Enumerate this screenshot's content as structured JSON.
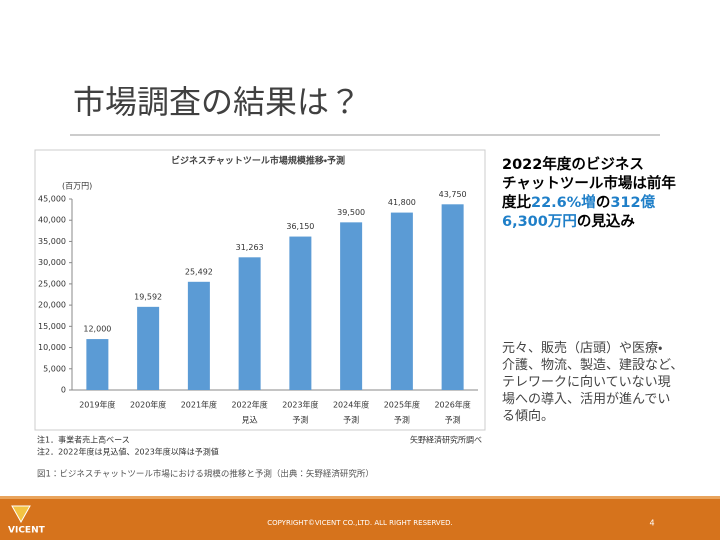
{
  "slide_title": "市場調査の結果は？",
  "chart_data": {
    "type": "bar",
    "title": "ビジネスチャットツール市場規模推移・予測",
    "y_unit_label": "(百万円)",
    "categories": [
      "2019年度",
      "2020年度",
      "2021年度",
      "2022年度",
      "2023年度",
      "2024年度",
      "2025年度",
      "2026年度"
    ],
    "category_sublabels": [
      null,
      null,
      null,
      "見込",
      "予測",
      "予測",
      "予測",
      "予測"
    ],
    "values": [
      12000,
      19592,
      25492,
      31263,
      36150,
      39500,
      41800,
      43750
    ],
    "value_labels": [
      "12,000",
      "19,592",
      "25,492",
      "31,263",
      "36,150",
      "39,500",
      "41,800",
      "43,750"
    ],
    "color": "#5b9bd5",
    "ylim": [
      0,
      45000
    ],
    "yticks": [
      0,
      {
        "value": 5000,
        "label": "5,000"
      },
      {
        "value": 10000,
        "label": "10,000"
      },
      {
        "value": 15000,
        "label": "15,000"
      },
      {
        "value": 20000,
        "label": "20,000"
      },
      {
        "value": 25000,
        "label": "25,000"
      },
      {
        "value": 30000,
        "label": "30,000"
      },
      {
        "value": 35000,
        "label": "35,000"
      },
      {
        "value": 40000,
        "label": "40,000"
      },
      {
        "value": 45000,
        "label": "45,000"
      }
    ],
    "grid": false,
    "notes": [
      "注1．事業者売上高ベース",
      "注2．2022年度は見込値、2023年度以降は予測値"
    ],
    "source": "矢野経済研究所調べ"
  },
  "chart_caption": "図1：ビジネスチャットツール市場における規模の推移と予測（出典：矢野経済研究所）",
  "headline": {
    "lines": [
      [
        {
          "text": "2022年度のビジネス",
          "color": "#000000"
        }
      ],
      [
        {
          "text": "チャットツール市場は前年",
          "color": "#000000"
        }
      ],
      [
        {
          "text": "度比",
          "color": "#000000"
        },
        {
          "text": "22.6%増",
          "color": "#1f7fc8"
        },
        {
          "text": "の",
          "color": "#000000"
        },
        {
          "text": "312億",
          "color": "#1f7fc8"
        }
      ],
      [
        {
          "text": "6,300万円",
          "color": "#1f7fc8"
        },
        {
          "text": "の見込み",
          "color": "#000000"
        }
      ]
    ]
  },
  "body": {
    "lines": [
      "元々、販売（店頭）や医療・",
      "介護、物流、製造、建設など、",
      "テレワークに向いていない現",
      "場への導入、活用が進んでい",
      "る傾向。"
    ]
  },
  "footer": {
    "logo": "VICENT",
    "copyright": "COPYRIGHT©VICENT CO.,LTD. ALL RIGHT RESERVED.",
    "page_number": "4"
  }
}
